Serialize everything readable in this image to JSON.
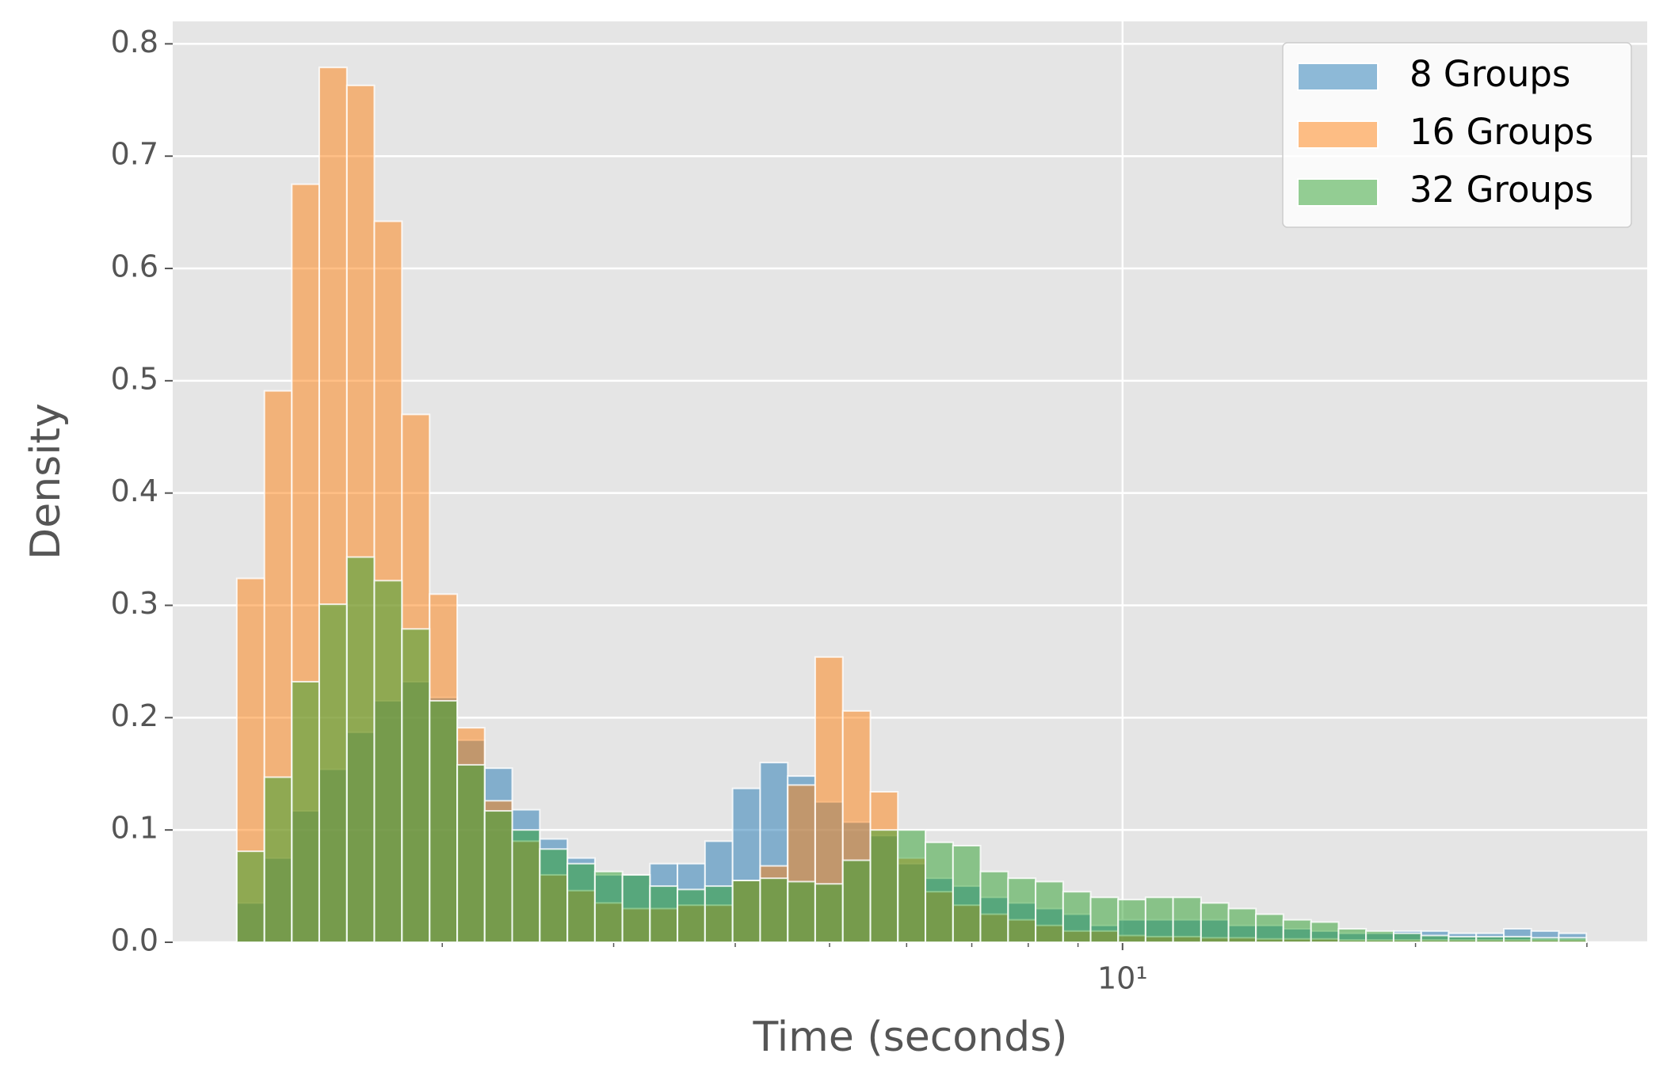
{
  "chart_data": {
    "type": "histogram",
    "xlabel": "Time (seconds)",
    "ylabel": "Density",
    "xscale": "log",
    "xlim": [
      1.057,
      34.6
    ],
    "ylim": [
      0,
      0.82
    ],
    "xticks": [
      {
        "value": 10,
        "label": "10¹"
      }
    ],
    "xminorticks": [
      2,
      3,
      4,
      5,
      6,
      7,
      8,
      9,
      20,
      30
    ],
    "yticks": [
      {
        "value": 0,
        "label": "0.0"
      },
      0.1,
      0.2,
      0.3,
      0.4,
      0.5,
      0.6,
      0.7,
      0.8
    ],
    "grid": true,
    "legend": "upper right",
    "bins": [
      1.23,
      1.313,
      1.401,
      1.495,
      1.596,
      1.703,
      1.818,
      1.941,
      2.072,
      2.211,
      2.36,
      2.519,
      2.689,
      2.87,
      3.063,
      3.269,
      3.489,
      3.724,
      3.975,
      4.243,
      4.529,
      4.833,
      5.159,
      5.507,
      5.877,
      6.273,
      6.696,
      7.145,
      7.628,
      8.141,
      8.689,
      9.273,
      9.897,
      10.56,
      11.27,
      12.04,
      12.85,
      13.71,
      14.63,
      15.62,
      16.67,
      17.79,
      18.99,
      20.27,
      21.63,
      23.09,
      24.65,
      26.3,
      28.07,
      29.96
    ],
    "series": [
      {
        "name": "8 Groups",
        "color": "#1f77b4",
        "values": [
          0.035,
          0.075,
          0.117,
          0.154,
          0.187,
          0.215,
          0.232,
          0.218,
          0.18,
          0.155,
          0.118,
          0.092,
          0.075,
          0.06,
          0.06,
          0.07,
          0.07,
          0.09,
          0.137,
          0.16,
          0.148,
          0.125,
          0.107,
          0.095,
          0.07,
          0.057,
          0.05,
          0.04,
          0.035,
          0.03,
          0.025,
          0.015,
          0.02,
          0.02,
          0.02,
          0.02,
          0.015,
          0.015,
          0.012,
          0.01,
          0.008,
          0.008,
          0.01,
          0.01,
          0.008,
          0.008,
          0.012,
          0.01,
          0.008
        ]
      },
      {
        "name": "16 Groups",
        "color": "#ff7f0e",
        "values": [
          0.324,
          0.491,
          0.675,
          0.779,
          0.763,
          0.642,
          0.47,
          0.31,
          0.191,
          0.126,
          0.09,
          0.06,
          0.046,
          0.035,
          0.03,
          0.03,
          0.033,
          0.033,
          0.055,
          0.068,
          0.14,
          0.254,
          0.206,
          0.134,
          0.075,
          0.045,
          0.033,
          0.025,
          0.02,
          0.015,
          0.01,
          0.01,
          0.006,
          0.005,
          0.005,
          0.004,
          0.004,
          0.003,
          0.003,
          0.003,
          0.002,
          0.002,
          0.002,
          0.002,
          0.002,
          0.002,
          0.002,
          0.002,
          0.002
        ]
      },
      {
        "name": "32 Groups",
        "color": "#2ca02c",
        "values": [
          0.081,
          0.147,
          0.232,
          0.301,
          0.343,
          0.322,
          0.279,
          0.215,
          0.158,
          0.117,
          0.1,
          0.083,
          0.07,
          0.063,
          0.06,
          0.05,
          0.047,
          0.05,
          0.055,
          0.057,
          0.054,
          0.052,
          0.073,
          0.1,
          0.1,
          0.089,
          0.086,
          0.063,
          0.057,
          0.054,
          0.045,
          0.04,
          0.038,
          0.04,
          0.04,
          0.035,
          0.03,
          0.025,
          0.02,
          0.018,
          0.012,
          0.01,
          0.008,
          0.006,
          0.005,
          0.005,
          0.005,
          0.004,
          0.004
        ]
      }
    ]
  }
}
